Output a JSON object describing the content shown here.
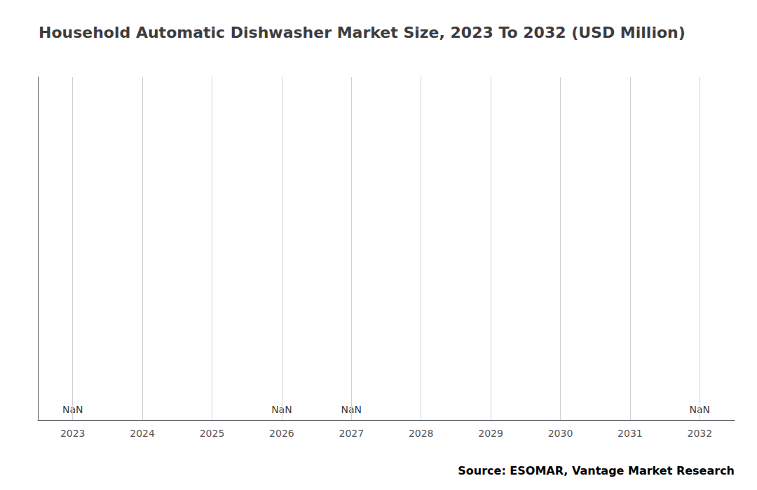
{
  "chart_data": {
    "type": "bar",
    "title": "Household Automatic Dishwasher Market Size, 2023 To 2032 (USD Million)",
    "categories": [
      "2023",
      "2024",
      "2025",
      "2026",
      "2027",
      "2028",
      "2029",
      "2030",
      "2031",
      "2032"
    ],
    "values": [
      null,
      null,
      null,
      null,
      null,
      null,
      null,
      null,
      null,
      null
    ],
    "value_labels": [
      "NaN",
      null,
      null,
      "NaN",
      "NaN",
      null,
      null,
      null,
      null,
      "NaN"
    ],
    "ylim": [
      0,
      1
    ],
    "yticks": [],
    "grid": "x",
    "tick_labels": "x",
    "data_labels": true,
    "annotations": [
      "Source: ESOMAR, Vantage Market Research"
    ]
  }
}
